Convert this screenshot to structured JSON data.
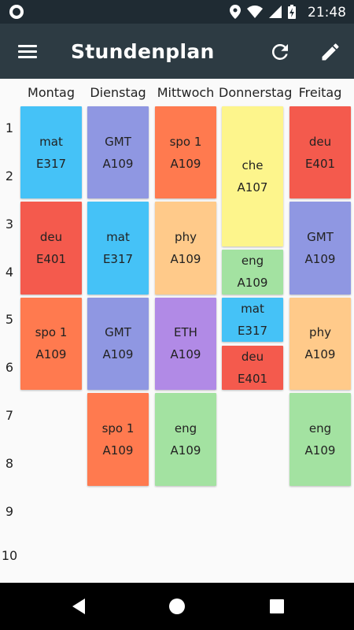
{
  "status_bar": {
    "time": "21:48"
  },
  "app_bar": {
    "title": "Stundenplan"
  },
  "days": [
    "Montag",
    "Dienstag",
    "Mittwoch",
    "Donnerstag",
    "Freitag"
  ],
  "periods": [
    "1",
    "2",
    "3",
    "4",
    "5",
    "6",
    "7",
    "8",
    "9",
    "10"
  ],
  "lessons": [
    {
      "day": 0,
      "start": 1,
      "span": 2,
      "subject": "mat",
      "room": "E317",
      "color": "#45c2f7"
    },
    {
      "day": 0,
      "start": 3,
      "span": 2,
      "subject": "deu",
      "room": "E401",
      "color": "#f45a4d"
    },
    {
      "day": 0,
      "start": 5,
      "span": 2,
      "subject": "spo 1",
      "room": "A109",
      "color": "#ff7a4f"
    },
    {
      "day": 1,
      "start": 1,
      "span": 2,
      "subject": "GMT",
      "room": "A109",
      "color": "#8f97e2"
    },
    {
      "day": 1,
      "start": 3,
      "span": 2,
      "subject": "mat",
      "room": "E317",
      "color": "#45c2f7"
    },
    {
      "day": 1,
      "start": 5,
      "span": 2,
      "subject": "GMT",
      "room": "A109",
      "color": "#8f97e2"
    },
    {
      "day": 1,
      "start": 7,
      "span": 2,
      "subject": "spo 1",
      "room": "A109",
      "color": "#ff7a4f"
    },
    {
      "day": 2,
      "start": 1,
      "span": 2,
      "subject": "spo 1",
      "room": "A109",
      "color": "#ff7a4f"
    },
    {
      "day": 2,
      "start": 3,
      "span": 2,
      "subject": "phy",
      "room": "A109",
      "color": "#ffca8a"
    },
    {
      "day": 2,
      "start": 5,
      "span": 2,
      "subject": "ETH",
      "room": "A109",
      "color": "#b18ae6"
    },
    {
      "day": 2,
      "start": 7,
      "span": 2,
      "subject": "eng",
      "room": "A109",
      "color": "#a3e2a1"
    },
    {
      "day": 3,
      "start": 1,
      "span": 3,
      "subject": "che",
      "room": "A107",
      "color": "#fdf58c"
    },
    {
      "day": 3,
      "start": 4,
      "span": 1,
      "subject": "eng",
      "room": "A109",
      "color": "#a3e2a1"
    },
    {
      "day": 3,
      "start": 5,
      "span": 1,
      "subject": "mat",
      "room": "E317",
      "color": "#45c2f7"
    },
    {
      "day": 3,
      "start": 6,
      "span": 1,
      "subject": "deu",
      "room": "E401",
      "color": "#f45a4d"
    },
    {
      "day": 4,
      "start": 1,
      "span": 2,
      "subject": "deu",
      "room": "E401",
      "color": "#f45a4d"
    },
    {
      "day": 4,
      "start": 3,
      "span": 2,
      "subject": "GMT",
      "room": "A109",
      "color": "#8f97e2"
    },
    {
      "day": 4,
      "start": 5,
      "span": 2,
      "subject": "phy",
      "room": "A109",
      "color": "#ffca8a"
    },
    {
      "day": 4,
      "start": 7,
      "span": 2,
      "subject": "eng",
      "room": "A109",
      "color": "#a3e2a1"
    }
  ]
}
